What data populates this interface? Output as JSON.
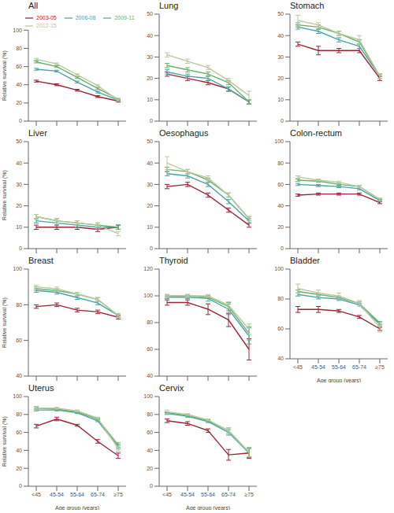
{
  "chart_data": [
    {
      "type": "line",
      "title": "All",
      "categories": [
        "<45",
        "45-54",
        "55-64",
        "65-74",
        "≥75"
      ],
      "ylim": [
        0,
        100
      ],
      "yticks": [
        0,
        20,
        40,
        60,
        80,
        100
      ],
      "ylabel": "Relative survival (%)",
      "tick_labels": "y",
      "grid": false,
      "legend": "top",
      "series": [
        {
          "name": "2003-05",
          "color": "#9B2335",
          "values": [
            44,
            40,
            34,
            27,
            22
          ],
          "errors": [
            1.0,
            1.0,
            1.0,
            1.0,
            1.0
          ]
        },
        {
          "name": "2006-08",
          "color": "#4BA3A3",
          "values": [
            57,
            55,
            43,
            32,
            23
          ],
          "errors": [
            1.0,
            1.0,
            1.0,
            1.0,
            1.0
          ]
        },
        {
          "name": "2009-11",
          "color": "#6AAF6A",
          "values": [
            65,
            60,
            48,
            36,
            24
          ],
          "errors": [
            1.0,
            1.0,
            1.0,
            1.0,
            1.0
          ]
        },
        {
          "name": "2012-15",
          "color": "#B8C8A0",
          "values": [
            68,
            63,
            51,
            39,
            23
          ],
          "errors": [
            1.0,
            1.0,
            1.0,
            1.0,
            1.0
          ]
        }
      ]
    },
    {
      "type": "line",
      "title": "Lung",
      "categories": [
        "<45",
        "45-54",
        "55-64",
        "65-74",
        "≥75"
      ],
      "ylim": [
        0,
        50
      ],
      "yticks": [
        0,
        10,
        20,
        30,
        40,
        50
      ],
      "tick_labels": "y",
      "grid": false,
      "series": [
        {
          "name": "2003-05",
          "color": "#9B2335",
          "values": [
            22,
            20,
            18,
            15,
            9
          ],
          "errors": [
            1.0,
            1.0,
            1.0,
            1.0,
            1.0
          ]
        },
        {
          "name": "2006-08",
          "color": "#4BA3A3",
          "values": [
            23,
            21,
            20,
            15,
            9
          ],
          "errors": [
            1.0,
            1.0,
            1.0,
            1.0,
            1.0
          ]
        },
        {
          "name": "2009-11",
          "color": "#6AAF6A",
          "values": [
            26,
            24,
            22,
            18,
            9
          ],
          "errors": [
            1.0,
            1.0,
            1.0,
            1.0,
            1.0
          ]
        },
        {
          "name": "2012-15",
          "color": "#B8C8A0",
          "values": [
            31,
            28,
            25,
            19,
            12
          ],
          "errors": [
            1.0,
            1.0,
            1.0,
            1.0,
            2.0
          ]
        }
      ]
    },
    {
      "type": "line",
      "title": "Stomach",
      "categories": [
        "<45",
        "45-54",
        "55-64",
        "65-74",
        "≥75"
      ],
      "ylim": [
        0,
        50
      ],
      "yticks": [
        0,
        10,
        20,
        30,
        40,
        50
      ],
      "tick_labels": "y",
      "grid": false,
      "series": [
        {
          "name": "2003-05",
          "color": "#9B2335",
          "values": [
            36,
            33,
            33,
            33,
            20
          ],
          "errors": [
            1.0,
            2.0,
            1.0,
            1.0,
            1.0
          ]
        },
        {
          "name": "2006-08",
          "color": "#4BA3A3",
          "values": [
            44,
            42,
            38,
            35,
            21
          ],
          "errors": [
            1.0,
            1.0,
            1.0,
            1.0,
            1.0
          ]
        },
        {
          "name": "2009-11",
          "color": "#6AAF6A",
          "values": [
            45,
            44,
            41,
            37,
            21
          ],
          "errors": [
            1.0,
            1.0,
            1.0,
            1.0,
            1.0
          ]
        },
        {
          "name": "2012-15",
          "color": "#B8C8A0",
          "values": [
            47,
            45,
            41,
            38,
            21
          ],
          "errors": [
            2.5,
            1.0,
            1.0,
            2.0,
            1.0
          ]
        }
      ]
    },
    {
      "type": "line",
      "title": "Liver",
      "categories": [
        "<45",
        "45-54",
        "55-64",
        "65-74",
        "≥75"
      ],
      "ylim": [
        0,
        50
      ],
      "yticks": [
        0,
        10,
        20,
        30,
        40,
        50
      ],
      "ylabel": "Relative survival (%)",
      "tick_labels": "y",
      "grid": false,
      "series": [
        {
          "name": "2003-05",
          "color": "#9B2335",
          "values": [
            10,
            10,
            10,
            9,
            10
          ],
          "errors": [
            1.0,
            1.0,
            1.0,
            1.0,
            1.0
          ]
        },
        {
          "name": "2006-08",
          "color": "#4BA3A3",
          "values": [
            13,
            12,
            11,
            10,
            10
          ],
          "errors": [
            1.0,
            1.0,
            1.0,
            1.0,
            1.0
          ]
        },
        {
          "name": "2009-11",
          "color": "#6AAF6A",
          "values": [
            15,
            13,
            12,
            11,
            10
          ],
          "errors": [
            1.0,
            1.0,
            1.0,
            1.0,
            1.0
          ]
        },
        {
          "name": "2012-15",
          "color": "#B8C8A0",
          "values": [
            15,
            13,
            12,
            11,
            7
          ],
          "errors": [
            1.0,
            1.0,
            1.0,
            1.0,
            1.0
          ]
        }
      ]
    },
    {
      "type": "line",
      "title": "Oesophagus",
      "categories": [
        "<45",
        "45-54",
        "55-64",
        "65-74",
        "≥75"
      ],
      "ylim": [
        0,
        50
      ],
      "yticks": [
        0,
        10,
        20,
        30,
        40,
        50
      ],
      "tick_labels": "y",
      "grid": false,
      "series": [
        {
          "name": "2003-05",
          "color": "#9B2335",
          "values": [
            29,
            30,
            25,
            18,
            11
          ],
          "errors": [
            1.0,
            1.0,
            1.0,
            1.0,
            1.0
          ]
        },
        {
          "name": "2006-08",
          "color": "#4BA3A3",
          "values": [
            35,
            34,
            30,
            22,
            13
          ],
          "errors": [
            1.0,
            1.0,
            1.0,
            1.0,
            1.0
          ]
        },
        {
          "name": "2009-11",
          "color": "#6AAF6A",
          "values": [
            37,
            36,
            32,
            25,
            14
          ],
          "errors": [
            1.0,
            1.0,
            1.0,
            1.0,
            1.0
          ]
        },
        {
          "name": "2012-15",
          "color": "#B8C8A0",
          "values": [
            40,
            36,
            33,
            25,
            14
          ],
          "errors": [
            3.0,
            1.0,
            1.0,
            1.0,
            1.0
          ]
        }
      ]
    },
    {
      "type": "line",
      "title": "Colon-rectum",
      "categories": [
        "<45",
        "45-54",
        "55-64",
        "65-74",
        "≥75"
      ],
      "ylim": [
        0,
        100
      ],
      "yticks": [
        0,
        20,
        40,
        60,
        80,
        100
      ],
      "tick_labels": "y",
      "grid": false,
      "series": [
        {
          "name": "2003-05",
          "color": "#9B2335",
          "values": [
            50,
            51,
            51,
            51,
            43
          ],
          "errors": [
            1.0,
            1.0,
            1.0,
            1.0,
            1.0
          ]
        },
        {
          "name": "2006-08",
          "color": "#4BA3A3",
          "values": [
            60,
            59,
            58,
            56,
            45
          ],
          "errors": [
            1.0,
            1.0,
            1.0,
            1.0,
            1.0
          ]
        },
        {
          "name": "2009-11",
          "color": "#6AAF6A",
          "values": [
            64,
            63,
            60,
            58,
            46
          ],
          "errors": [
            1.0,
            1.0,
            1.0,
            1.0,
            1.0
          ]
        },
        {
          "name": "2012-15",
          "color": "#B8C8A0",
          "values": [
            67,
            64,
            62,
            58,
            46
          ],
          "errors": [
            1.0,
            1.0,
            1.0,
            1.0,
            1.0
          ]
        }
      ]
    },
    {
      "type": "line",
      "title": "Breast",
      "categories": [
        "<45",
        "45-54",
        "55-64",
        "65-74",
        "≥75"
      ],
      "ylim": [
        40,
        100
      ],
      "yticks": [
        40,
        60,
        80,
        100
      ],
      "ylabel": "Relative survival (%)",
      "tick_labels": "y",
      "grid": false,
      "series": [
        {
          "name": "2003-05",
          "color": "#9B2335",
          "values": [
            79,
            80,
            77,
            76,
            73
          ],
          "errors": [
            1.0,
            1.0,
            1.0,
            1.0,
            1.0
          ]
        },
        {
          "name": "2006-08",
          "color": "#4BA3A3",
          "values": [
            88,
            87,
            84,
            81,
            74
          ],
          "errors": [
            1.0,
            1.0,
            1.0,
            1.0,
            1.0
          ]
        },
        {
          "name": "2009-11",
          "color": "#6AAF6A",
          "values": [
            89,
            88,
            86,
            83,
            74
          ],
          "errors": [
            1.0,
            1.0,
            1.0,
            1.0,
            1.0
          ]
        },
        {
          "name": "2012-15",
          "color": "#B8C8A0",
          "values": [
            90,
            89,
            86,
            83,
            74
          ],
          "errors": [
            1.0,
            1.0,
            1.0,
            1.0,
            1.0
          ]
        }
      ]
    },
    {
      "type": "line",
      "title": "Thyroid",
      "categories": [
        "<45",
        "45-54",
        "55-64",
        "65-74",
        "≥75"
      ],
      "ylim": [
        40,
        120
      ],
      "yticks": [
        40,
        60,
        80,
        100,
        120
      ],
      "tick_labels": "y",
      "grid": false,
      "series": [
        {
          "name": "2003-05",
          "color": "#9B2335",
          "values": [
            95,
            95,
            90,
            82,
            60
          ],
          "errors": [
            2.0,
            2.0,
            4.0,
            5.0,
            8.0
          ]
        },
        {
          "name": "2006-08",
          "color": "#4BA3A3",
          "values": [
            99,
            99,
            98,
            90,
            70
          ],
          "errors": [
            1.0,
            1.0,
            2.0,
            4.0,
            6.0
          ]
        },
        {
          "name": "2009-11",
          "color": "#6AAF6A",
          "values": [
            100,
            100,
            99,
            92,
            72
          ],
          "errors": [
            1.0,
            1.0,
            1.0,
            3.0,
            5.0
          ]
        },
        {
          "name": "2012-15",
          "color": "#B8C8A0",
          "values": [
            100,
            100,
            100,
            93,
            75
          ],
          "errors": [
            1.0,
            1.0,
            1.0,
            2.5,
            4.0
          ]
        }
      ]
    },
    {
      "type": "line",
      "title": "Bladder",
      "categories": [
        "<45",
        "45-54",
        "55-64",
        "65-74",
        "≥75"
      ],
      "ylim": [
        40,
        100
      ],
      "yticks": [
        40,
        60,
        80,
        100
      ],
      "xlabel": "Age group (years)",
      "grid": false,
      "series": [
        {
          "name": "2003-05",
          "color": "#9B2335",
          "values": [
            73,
            73,
            72,
            68,
            60
          ],
          "errors": [
            2.0,
            2.0,
            1.0,
            1.0,
            1.0
          ]
        },
        {
          "name": "2006-08",
          "color": "#4BA3A3",
          "values": [
            83,
            81,
            80,
            76,
            63
          ],
          "errors": [
            1.0,
            1.0,
            1.0,
            1.0,
            1.0
          ]
        },
        {
          "name": "2009-11",
          "color": "#6AAF6A",
          "values": [
            85,
            83,
            81,
            77,
            64
          ],
          "errors": [
            1.0,
            1.0,
            1.0,
            1.0,
            1.0
          ]
        },
        {
          "name": "2012-15",
          "color": "#B8C8A0",
          "values": [
            87,
            84,
            82,
            77,
            61
          ],
          "errors": [
            3.0,
            2.0,
            2.0,
            2.0,
            3.0
          ]
        }
      ]
    },
    {
      "type": "line",
      "title": "Uterus",
      "categories": [
        "<45",
        "45-54",
        "55-64",
        "65-74",
        "≥75"
      ],
      "ylim": [
        0,
        100
      ],
      "yticks": [
        0,
        20,
        40,
        60,
        80,
        100
      ],
      "ylabel": "Relative survival (%)",
      "xlabel": "Age group (years)",
      "grid": false,
      "series": [
        {
          "name": "2003-05",
          "color": "#9B2335",
          "values": [
            67,
            75,
            68,
            50,
            34
          ],
          "errors": [
            2.0,
            2.0,
            1.0,
            2.0,
            3.0
          ]
        },
        {
          "name": "2006-08",
          "color": "#4BA3A3",
          "values": [
            85,
            85,
            82,
            73,
            44
          ],
          "errors": [
            1.0,
            1.0,
            1.0,
            1.0,
            2.5
          ]
        },
        {
          "name": "2009-11",
          "color": "#6AAF6A",
          "values": [
            87,
            86,
            83,
            75,
            46
          ],
          "errors": [
            1.0,
            1.0,
            1.0,
            1.0,
            2.5
          ]
        },
        {
          "name": "2012-15",
          "color": "#B8C8A0",
          "values": [
            87,
            87,
            84,
            76,
            42
          ],
          "errors": [
            2.0,
            1.0,
            1.0,
            1.0,
            3.0
          ]
        }
      ]
    },
    {
      "type": "line",
      "title": "Cervix",
      "categories": [
        "<45",
        "45-54",
        "55-64",
        "65-74",
        "≥75"
      ],
      "ylim": [
        0,
        100
      ],
      "yticks": [
        0,
        20,
        40,
        60,
        80,
        100
      ],
      "xlabel": "Age group (years)",
      "grid": false,
      "series": [
        {
          "name": "2003-05",
          "color": "#9B2335",
          "values": [
            73,
            70,
            62,
            35,
            37
          ],
          "errors": [
            2.0,
            2.0,
            2.0,
            6.0,
            6.0
          ]
        },
        {
          "name": "2006-08",
          "color": "#4BA3A3",
          "values": [
            81,
            78,
            72,
            60,
            37
          ],
          "errors": [
            1.0,
            1.0,
            1.0,
            3.0,
            5.0
          ]
        },
        {
          "name": "2009-11",
          "color": "#6AAF6A",
          "values": [
            82,
            79,
            73,
            62,
            38
          ],
          "errors": [
            1.0,
            1.0,
            1.0,
            3.0,
            5.0
          ]
        },
        {
          "name": "2012-15",
          "color": "#B8C8A0",
          "values": [
            83,
            80,
            74,
            62,
            38
          ],
          "errors": [
            2.0,
            1.0,
            1.0,
            3.0,
            5.0
          ]
        }
      ]
    }
  ]
}
